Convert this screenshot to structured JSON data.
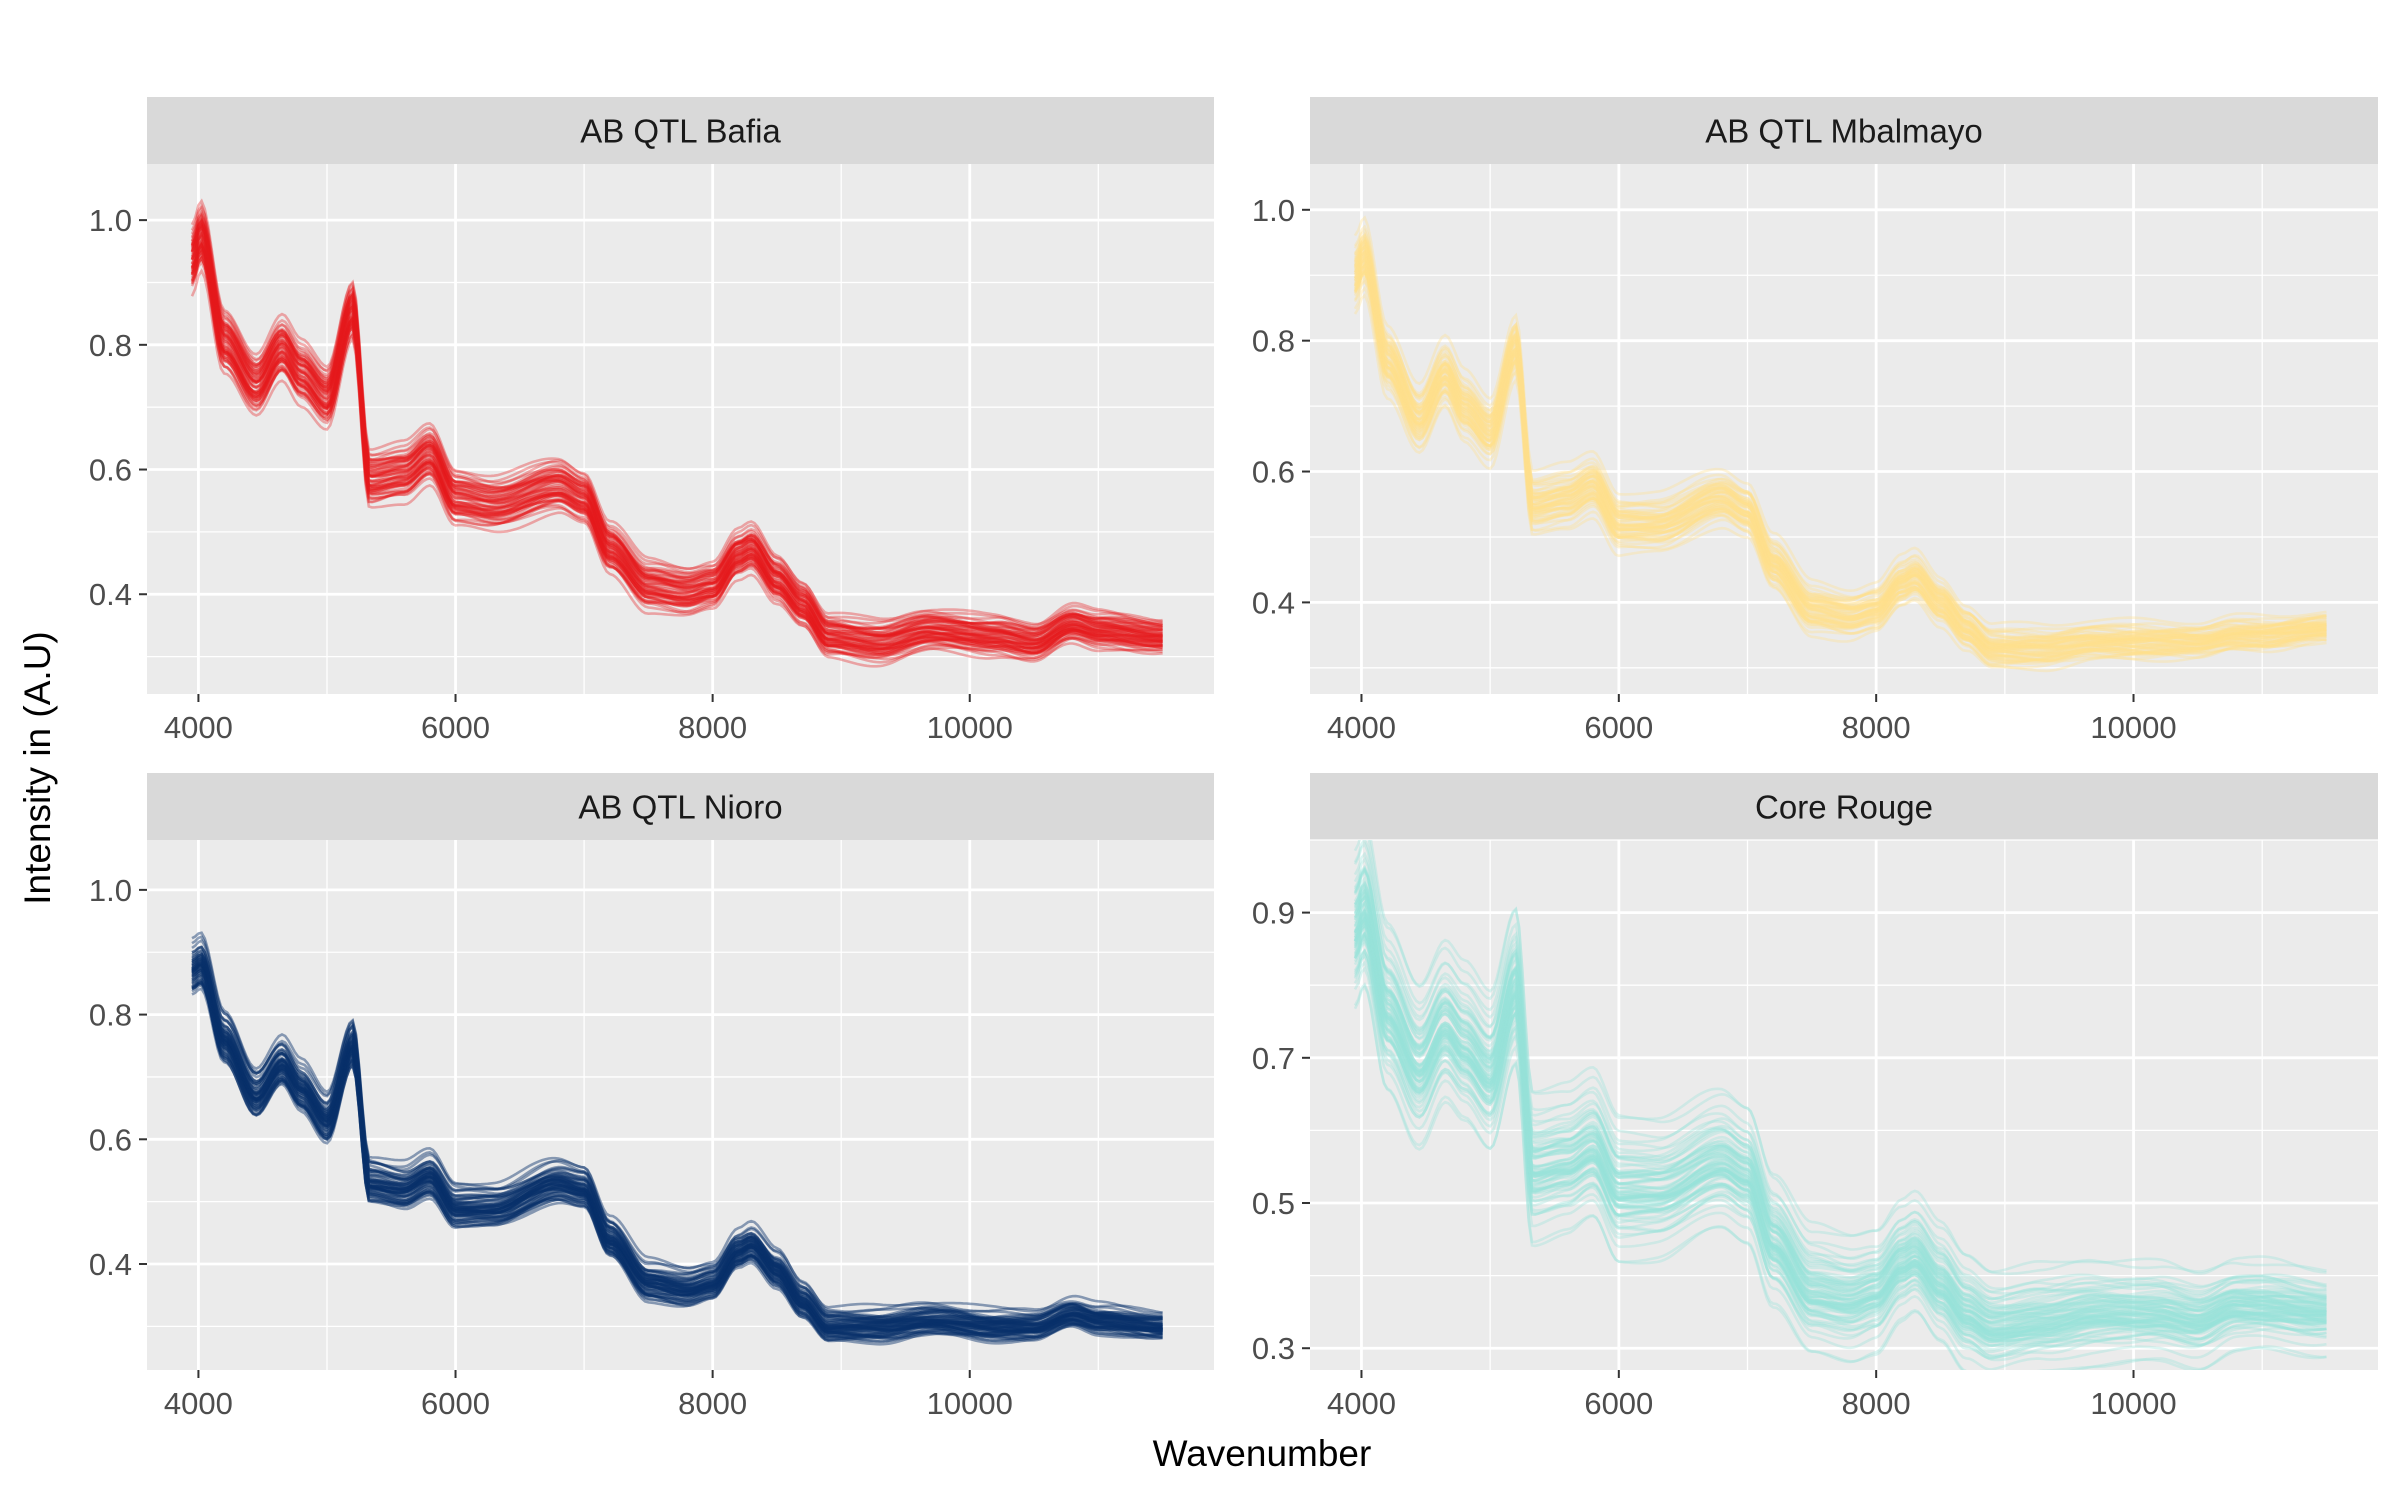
{
  "chart_data": {
    "type": "line",
    "layout": "facet-grid-2x2",
    "xlabel": "Wavenumber",
    "ylabel": "Intensity in (A.U)",
    "grid": true,
    "legend": "none",
    "panel_background": "#EBEBEB",
    "strip_background": "#D9D9D9",
    "gridline_color": "#FFFFFF",
    "x_breaks": [
      4000,
      6000,
      8000,
      10000
    ],
    "x_tick_labels": [
      "4000",
      "6000",
      "8000",
      "10000"
    ],
    "xlim": [
      3600,
      11900
    ],
    "x_start": 3950,
    "x_end": 11500,
    "panels": [
      {
        "title": "AB QTL Bafia",
        "color": "#E41A1C",
        "line_opacity": 0.35,
        "ylim": [
          0.24,
          1.09
        ],
        "y_breaks": [
          0.4,
          0.6,
          0.8,
          1.0
        ],
        "y_tick_labels": [
          "0.4",
          "0.6",
          "0.8",
          "1.0"
        ],
        "n_lines": 60,
        "median_profile": [
          [
            3950,
            0.93
          ],
          [
            4020,
            0.97
          ],
          [
            4200,
            0.8
          ],
          [
            4450,
            0.73
          ],
          [
            4650,
            0.79
          ],
          [
            4800,
            0.75
          ],
          [
            5000,
            0.71
          ],
          [
            5200,
            0.85
          ],
          [
            5330,
            0.58
          ],
          [
            5600,
            0.59
          ],
          [
            5800,
            0.62
          ],
          [
            6000,
            0.55
          ],
          [
            6300,
            0.54
          ],
          [
            6800,
            0.57
          ],
          [
            7000,
            0.55
          ],
          [
            7200,
            0.47
          ],
          [
            7500,
            0.41
          ],
          [
            7800,
            0.4
          ],
          [
            8000,
            0.41
          ],
          [
            8200,
            0.46
          ],
          [
            8300,
            0.47
          ],
          [
            8500,
            0.42
          ],
          [
            8700,
            0.38
          ],
          [
            8900,
            0.33
          ],
          [
            9300,
            0.32
          ],
          [
            9700,
            0.34
          ],
          [
            10200,
            0.33
          ],
          [
            10500,
            0.32
          ],
          [
            10800,
            0.35
          ],
          [
            11000,
            0.34
          ],
          [
            11500,
            0.33
          ]
        ],
        "spread": 0.06
      },
      {
        "title": "AB QTL Mbalmayo",
        "color": "#FEE08B",
        "line_opacity": 0.35,
        "ylim": [
          0.26,
          1.07
        ],
        "y_breaks": [
          0.4,
          0.6,
          0.8,
          1.0
        ],
        "y_tick_labels": [
          "0.4",
          "0.6",
          "0.8",
          "1.0"
        ],
        "n_lines": 60,
        "median_profile": [
          [
            3950,
            0.9
          ],
          [
            4020,
            0.93
          ],
          [
            4200,
            0.77
          ],
          [
            4450,
            0.68
          ],
          [
            4650,
            0.75
          ],
          [
            4800,
            0.7
          ],
          [
            5000,
            0.66
          ],
          [
            5200,
            0.79
          ],
          [
            5330,
            0.55
          ],
          [
            5600,
            0.56
          ],
          [
            5800,
            0.58
          ],
          [
            6000,
            0.52
          ],
          [
            6300,
            0.52
          ],
          [
            6800,
            0.56
          ],
          [
            7000,
            0.54
          ],
          [
            7200,
            0.46
          ],
          [
            7500,
            0.39
          ],
          [
            7800,
            0.38
          ],
          [
            8000,
            0.39
          ],
          [
            8200,
            0.43
          ],
          [
            8300,
            0.44
          ],
          [
            8500,
            0.4
          ],
          [
            8700,
            0.36
          ],
          [
            8900,
            0.33
          ],
          [
            9300,
            0.33
          ],
          [
            9700,
            0.34
          ],
          [
            10200,
            0.34
          ],
          [
            10500,
            0.34
          ],
          [
            10800,
            0.35
          ],
          [
            11000,
            0.35
          ],
          [
            11500,
            0.36
          ]
        ],
        "spread": 0.05
      },
      {
        "title": "AB QTL Nioro",
        "color": "#08306B",
        "line_opacity": 0.45,
        "ylim": [
          0.23,
          1.08
        ],
        "y_breaks": [
          0.4,
          0.6,
          0.8,
          1.0
        ],
        "y_tick_labels": [
          "0.4",
          "0.6",
          "0.8",
          "1.0"
        ],
        "n_lines": 60,
        "median_profile": [
          [
            3950,
            0.87
          ],
          [
            4020,
            0.88
          ],
          [
            4200,
            0.76
          ],
          [
            4450,
            0.67
          ],
          [
            4650,
            0.72
          ],
          [
            4800,
            0.68
          ],
          [
            5000,
            0.63
          ],
          [
            5200,
            0.75
          ],
          [
            5330,
            0.53
          ],
          [
            5600,
            0.52
          ],
          [
            5800,
            0.54
          ],
          [
            6000,
            0.49
          ],
          [
            6300,
            0.49
          ],
          [
            6800,
            0.53
          ],
          [
            7000,
            0.52
          ],
          [
            7200,
            0.44
          ],
          [
            7500,
            0.37
          ],
          [
            7800,
            0.36
          ],
          [
            8000,
            0.37
          ],
          [
            8200,
            0.42
          ],
          [
            8300,
            0.43
          ],
          [
            8500,
            0.39
          ],
          [
            8700,
            0.34
          ],
          [
            8900,
            0.3
          ],
          [
            9300,
            0.3
          ],
          [
            9700,
            0.31
          ],
          [
            10200,
            0.3
          ],
          [
            10500,
            0.3
          ],
          [
            10800,
            0.32
          ],
          [
            11000,
            0.31
          ],
          [
            11500,
            0.3
          ]
        ],
        "spread": 0.04
      },
      {
        "title": "Core Rouge",
        "color": "#99E1D9",
        "line_opacity": 0.35,
        "ylim": [
          0.27,
          1.0
        ],
        "y_breaks": [
          0.3,
          0.5,
          0.7,
          0.9
        ],
        "y_tick_labels": [
          "0.3",
          "0.5",
          "0.7",
          "0.9"
        ],
        "n_lines": 80,
        "median_profile": [
          [
            3950,
            0.88
          ],
          [
            4020,
            0.91
          ],
          [
            4200,
            0.77
          ],
          [
            4450,
            0.69
          ],
          [
            4650,
            0.75
          ],
          [
            4800,
            0.72
          ],
          [
            5000,
            0.68
          ],
          [
            5200,
            0.8
          ],
          [
            5330,
            0.55
          ],
          [
            5600,
            0.56
          ],
          [
            5800,
            0.58
          ],
          [
            6000,
            0.52
          ],
          [
            6300,
            0.52
          ],
          [
            6800,
            0.56
          ],
          [
            7000,
            0.54
          ],
          [
            7200,
            0.45
          ],
          [
            7500,
            0.38
          ],
          [
            7800,
            0.37
          ],
          [
            8000,
            0.38
          ],
          [
            8200,
            0.42
          ],
          [
            8300,
            0.43
          ],
          [
            8500,
            0.39
          ],
          [
            8700,
            0.35
          ],
          [
            8900,
            0.33
          ],
          [
            9300,
            0.34
          ],
          [
            9700,
            0.35
          ],
          [
            10200,
            0.35
          ],
          [
            10500,
            0.34
          ],
          [
            10800,
            0.36
          ],
          [
            11000,
            0.36
          ],
          [
            11500,
            0.35
          ]
        ],
        "spread": 0.09
      }
    ]
  }
}
